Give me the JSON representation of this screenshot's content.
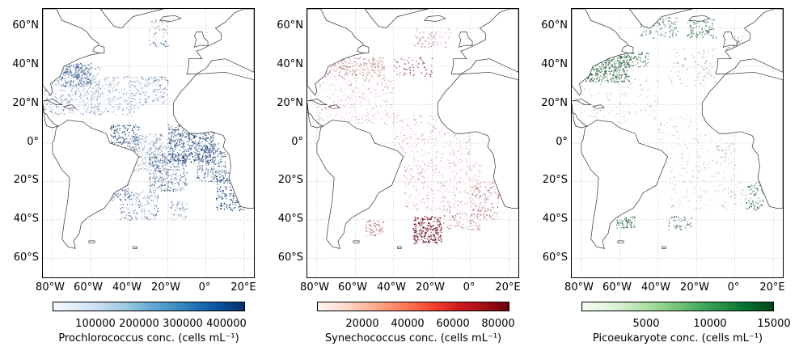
{
  "maps": [
    {
      "id": "pro",
      "colorbar_label": "Prochlorococcus conc. (cells mL⁻¹)",
      "colorbar_ticks": [
        "100000",
        "200000",
        "300000",
        "400000"
      ],
      "colorbar_tick_values": [
        100000,
        200000,
        300000,
        400000
      ],
      "colorbar_range": [
        0,
        440000
      ],
      "colormap": "Blues",
      "color_low": "#f4f9fe",
      "color_high": "#08306b"
    },
    {
      "id": "syn",
      "colorbar_label": "Synechococcus conc. (cells mL⁻¹)",
      "colorbar_ticks": [
        "20000",
        "40000",
        "60000",
        "80000"
      ],
      "colorbar_tick_values": [
        20000,
        40000,
        60000,
        80000
      ],
      "colorbar_range": [
        0,
        85000
      ],
      "colormap": "Reds",
      "color_low": "#fff3ee",
      "color_high": "#67000d"
    },
    {
      "id": "pico",
      "colorbar_label": "Picoeukaryote conc. (cells mL⁻¹)",
      "colorbar_ticks": [
        "5000",
        "10000",
        "15000"
      ],
      "colorbar_tick_values": [
        5000,
        10000,
        15000
      ],
      "colorbar_range": [
        0,
        15000
      ],
      "colormap": "Greens",
      "color_low": "#f5fbf3",
      "color_high": "#00441b"
    }
  ],
  "lat_ticks": [
    "60°N",
    "40°N",
    "20°N",
    "0°",
    "20°S",
    "40°S",
    "60°S"
  ],
  "lon_ticks": [
    "80°W",
    "60°W",
    "40°W",
    "20°W",
    "0°",
    "20°E"
  ],
  "lat_range": [
    -70,
    70
  ],
  "lon_range": [
    -85,
    25
  ],
  "gridlines": true
}
